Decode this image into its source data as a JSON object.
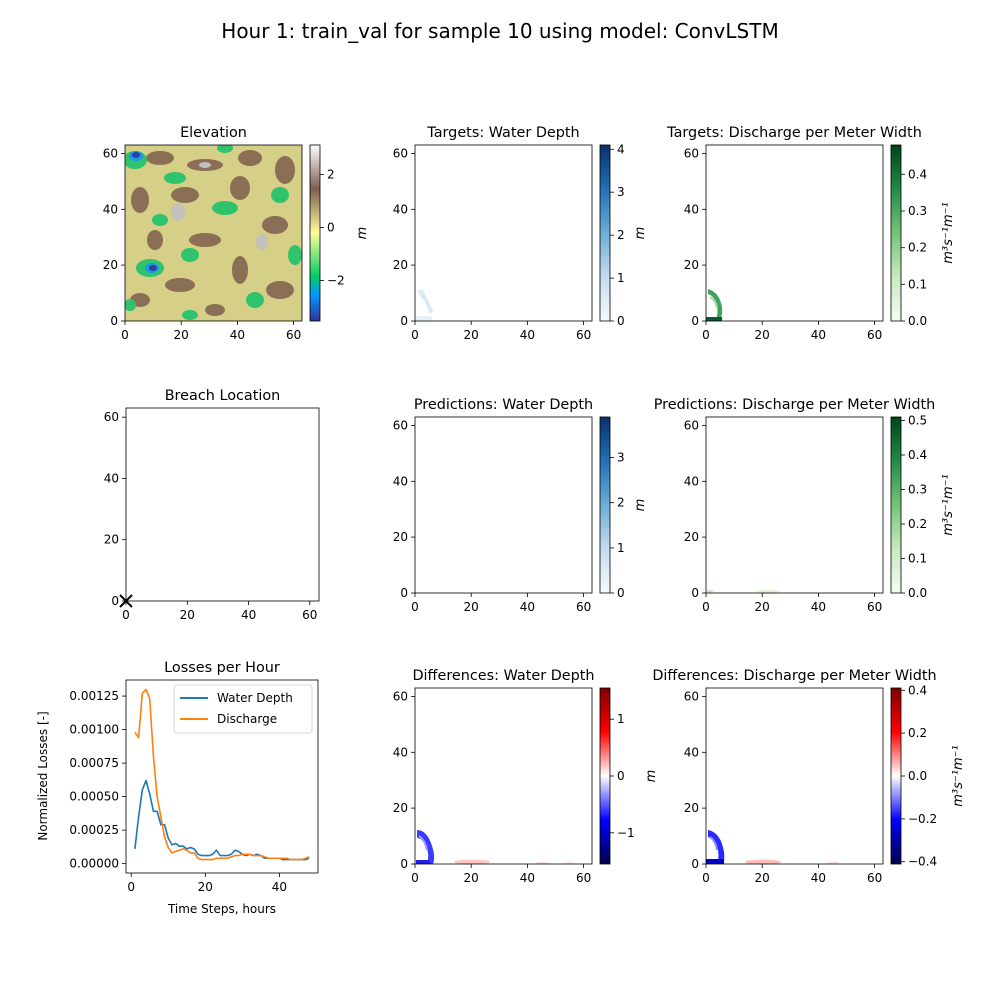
{
  "suptitle": "Hour 1: train_val for sample 10 using model: ConvLSTM",
  "colors": {
    "water_depth_line": "#1f77b4",
    "discharge_line": "#ff7f0e",
    "breach_marker": "#000000"
  },
  "chart_data": [
    {
      "id": "elevation",
      "type": "heatmap",
      "title": "Elevation",
      "xlim": [
        0,
        63
      ],
      "ylim": [
        0,
        63
      ],
      "xticks": [
        "0",
        "20",
        "40",
        "60"
      ],
      "yticks": [
        "0",
        "20",
        "40",
        "60"
      ],
      "colorbar": {
        "label": "m",
        "cmap": "terrain",
        "range": [
          -3.4,
          3.4
        ],
        "ticks": [
          "−2",
          "0",
          "2"
        ]
      }
    },
    {
      "id": "targets-depth",
      "type": "heatmap",
      "title": "Targets: Water Depth",
      "xlim": [
        0,
        63
      ],
      "ylim": [
        0,
        63
      ],
      "xticks": [
        "0",
        "20",
        "40",
        "60"
      ],
      "yticks": [
        "0",
        "20",
        "40",
        "60"
      ],
      "colorbar": {
        "label": "m",
        "cmap": "Blues",
        "range": [
          0,
          4.1
        ],
        "ticks": [
          "0",
          "1",
          "2",
          "3",
          "4"
        ]
      }
    },
    {
      "id": "targets-discharge",
      "type": "heatmap",
      "title": "Targets: Discharge per Meter Width",
      "xlim": [
        0,
        63
      ],
      "ylim": [
        0,
        63
      ],
      "xticks": [
        "0",
        "20",
        "40",
        "60"
      ],
      "yticks": [
        "0",
        "20",
        "40",
        "60"
      ],
      "colorbar": {
        "label": "m³s⁻¹m⁻¹",
        "cmap": "Greens",
        "range": [
          0,
          0.48
        ],
        "ticks": [
          "0.0",
          "0.1",
          "0.2",
          "0.3",
          "0.4"
        ]
      }
    },
    {
      "id": "breach",
      "type": "scatter",
      "title": "Breach Location",
      "xlim": [
        0,
        63
      ],
      "ylim": [
        0,
        63
      ],
      "xticks": [
        "0",
        "20",
        "40",
        "60"
      ],
      "yticks": [
        "0",
        "20",
        "40",
        "60"
      ],
      "points": [
        {
          "x": 0,
          "y": 0,
          "marker": "x"
        }
      ]
    },
    {
      "id": "pred-depth",
      "type": "heatmap",
      "title": "Predictions: Water Depth",
      "xlim": [
        0,
        63
      ],
      "ylim": [
        0,
        63
      ],
      "xticks": [
        "0",
        "20",
        "40",
        "60"
      ],
      "yticks": [
        "0",
        "20",
        "40",
        "60"
      ],
      "colorbar": {
        "label": "m",
        "cmap": "Blues",
        "range": [
          0,
          3.9
        ],
        "ticks": [
          "0",
          "1",
          "2",
          "3"
        ]
      }
    },
    {
      "id": "pred-discharge",
      "type": "heatmap",
      "title": "Predictions: Discharge per Meter Width",
      "xlim": [
        0,
        63
      ],
      "ylim": [
        0,
        63
      ],
      "xticks": [
        "0",
        "20",
        "40",
        "60"
      ],
      "yticks": [
        "0",
        "20",
        "40",
        "60"
      ],
      "colorbar": {
        "label": "m³s⁻¹m⁻¹",
        "cmap": "Greens",
        "range": [
          0,
          0.51
        ],
        "ticks": [
          "0.0",
          "0.1",
          "0.2",
          "0.3",
          "0.4",
          "0.5"
        ]
      }
    },
    {
      "id": "losses",
      "type": "line",
      "title": "Losses per Hour",
      "xlabel": "Time Steps, hours",
      "ylabel": "Normalized Losses [-]",
      "xlim": [
        -1.4,
        50.4
      ],
      "ylim": [
        -7e-05,
        0.00137
      ],
      "xticks": [
        0,
        20,
        40
      ],
      "yticks": [
        0,
        0.00025,
        0.0005,
        0.00075,
        0.001,
        0.00125
      ],
      "ytick_labels": [
        "0.00000",
        "0.00025",
        "0.00050",
        "0.00075",
        "0.00100",
        "0.00125"
      ],
      "legend": "top-right",
      "series": [
        {
          "name": "Water Depth",
          "x": [
            1,
            2,
            3,
            4,
            5,
            6,
            7,
            8,
            9,
            10,
            11,
            12,
            13,
            14,
            15,
            16,
            17,
            18,
            19,
            20,
            21,
            22,
            23,
            24,
            25,
            26,
            27,
            28,
            29,
            30,
            31,
            32,
            33,
            34,
            35,
            36,
            37,
            38,
            39,
            40,
            41,
            42,
            43,
            44,
            45,
            46,
            47,
            48
          ],
          "values": [
            0.00011,
            0.00035,
            0.00055,
            0.00062,
            0.00052,
            0.00039,
            0.00039,
            0.00029,
            0.00029,
            0.00019,
            0.00014,
            0.00015,
            0.00013,
            0.00013,
            0.00011,
            0.00012,
            0.00011,
            7e-05,
            6e-05,
            6e-05,
            6e-05,
            7e-05,
            0.0001,
            6e-05,
            6e-05,
            6e-05,
            7e-05,
            0.0001,
            9e-05,
            7e-05,
            6e-05,
            7e-05,
            6e-05,
            7e-05,
            6e-05,
            4e-05,
            4e-05,
            4e-05,
            4e-05,
            4e-05,
            3e-05,
            3e-05,
            3e-05,
            3e-05,
            3e-05,
            3e-05,
            3e-05,
            4e-05
          ]
        },
        {
          "name": "Discharge",
          "x": [
            1,
            2,
            3,
            4,
            5,
            6,
            7,
            8,
            9,
            10,
            11,
            12,
            13,
            14,
            15,
            16,
            17,
            18,
            19,
            20,
            21,
            22,
            23,
            24,
            25,
            26,
            27,
            28,
            29,
            30,
            31,
            32,
            33,
            34,
            35,
            36,
            37,
            38,
            39,
            40,
            41,
            42,
            43,
            44,
            45,
            46,
            47,
            48
          ],
          "values": [
            0.00098,
            0.00094,
            0.00127,
            0.0013,
            0.00123,
            0.0008,
            0.0005,
            0.00035,
            0.0002,
            0.00012,
            8e-05,
            9e-05,
            0.0001,
            0.00011,
            0.0001,
            8e-05,
            8e-05,
            4e-05,
            3e-05,
            3e-05,
            3e-05,
            3e-05,
            4e-05,
            4e-05,
            4e-05,
            4e-05,
            5e-05,
            6e-05,
            6e-05,
            7e-05,
            7e-05,
            7e-05,
            6e-05,
            6e-05,
            6e-05,
            5e-05,
            4e-05,
            4e-05,
            4e-05,
            4e-05,
            4e-05,
            4e-05,
            3e-05,
            3e-05,
            3e-05,
            3e-05,
            4e-05,
            5e-05
          ]
        }
      ]
    },
    {
      "id": "diff-depth",
      "type": "heatmap",
      "title": "Differences: Water Depth",
      "xlim": [
        0,
        63
      ],
      "ylim": [
        0,
        63
      ],
      "xticks": [
        "0",
        "20",
        "40",
        "60"
      ],
      "yticks": [
        "0",
        "20",
        "40",
        "60"
      ],
      "colorbar": {
        "label": "m",
        "cmap": "seismic",
        "range": [
          -1.55,
          1.55
        ],
        "ticks": [
          "−1",
          "0",
          "1"
        ]
      }
    },
    {
      "id": "diff-discharge",
      "type": "heatmap",
      "title": "Differences: Discharge per Meter Width",
      "xlim": [
        0,
        63
      ],
      "ylim": [
        0,
        63
      ],
      "xticks": [
        "0",
        "20",
        "40",
        "60"
      ],
      "yticks": [
        "0",
        "20",
        "40",
        "60"
      ],
      "colorbar": {
        "label": "m³s⁻¹m⁻¹",
        "cmap": "seismic",
        "range": [
          -0.41,
          0.41
        ],
        "ticks": [
          "−0.4",
          "−0.2",
          "0.0",
          "0.2",
          "0.4"
        ]
      }
    }
  ]
}
